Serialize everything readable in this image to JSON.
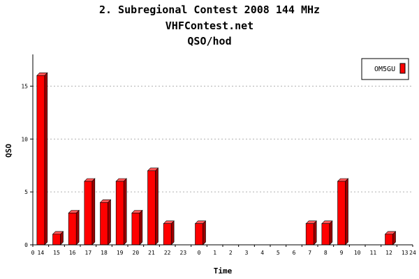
{
  "chart_data": {
    "type": "bar",
    "title": "2. Subregional Contest 2008 144 MHz",
    "subtitle": "VHFContest.net",
    "title3": "QSO/hod",
    "xlabel": "Time",
    "ylabel": "QSO",
    "categories": [
      "14",
      "15",
      "16",
      "17",
      "18",
      "19",
      "20",
      "21",
      "22",
      "23",
      "0",
      "1",
      "2",
      "3",
      "4",
      "5",
      "6",
      "7",
      "8",
      "9",
      "10",
      "11",
      "12",
      "13"
    ],
    "series": [
      {
        "name": "OM5GU",
        "color": "#ff0000",
        "values": [
          16,
          1,
          3,
          6,
          4,
          6,
          3,
          7,
          2,
          0,
          2,
          0,
          0,
          0,
          0,
          0,
          0,
          2,
          2,
          6,
          0,
          0,
          1,
          0
        ]
      }
    ],
    "axis_start_label": "0",
    "axis_end_label": "24",
    "yticks": [
      0,
      5,
      10,
      15
    ],
    "ylim": [
      0,
      18
    ],
    "grid": "horizontal dashed",
    "legend_position": "top-right"
  }
}
